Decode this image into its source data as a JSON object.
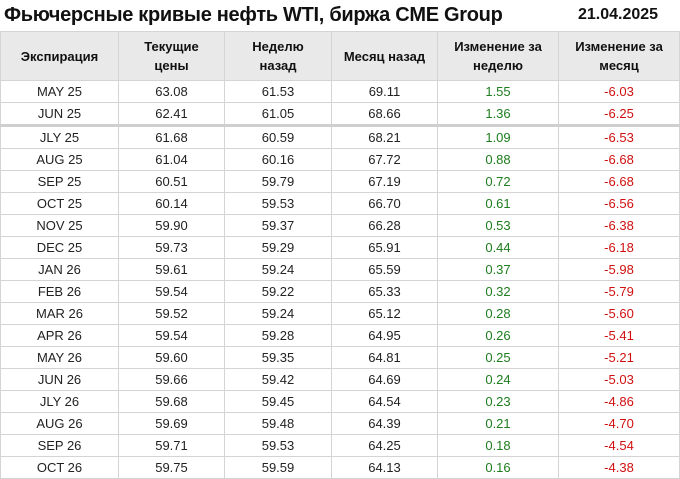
{
  "header": {
    "title": "Фьючерсные кривые нефть WTI, биржа CME Group",
    "date": "21.04.2025"
  },
  "colors": {
    "positive": "#1e7d1e",
    "negative": "#d01010",
    "header_bg": "#e9e9e9"
  },
  "table": {
    "columns": [
      "Экспирация",
      "Текущие цены",
      "Неделю назад",
      "Месяц назад",
      "Изменение за неделю",
      "Изменение за месяц"
    ],
    "rows": [
      [
        "MAY 25",
        "63.08",
        "61.53",
        "69.11",
        "1.55",
        "-6.03"
      ],
      [
        "JUN 25",
        "62.41",
        "61.05",
        "68.66",
        "1.36",
        "-6.25"
      ],
      [
        "JLY 25",
        "61.68",
        "60.59",
        "68.21",
        "1.09",
        "-6.53"
      ],
      [
        "AUG 25",
        "61.04",
        "60.16",
        "67.72",
        "0.88",
        "-6.68"
      ],
      [
        "SEP 25",
        "60.51",
        "59.79",
        "67.19",
        "0.72",
        "-6.68"
      ],
      [
        "OCT 25",
        "60.14",
        "59.53",
        "66.70",
        "0.61",
        "-6.56"
      ],
      [
        "NOV 25",
        "59.90",
        "59.37",
        "66.28",
        "0.53",
        "-6.38"
      ],
      [
        "DEC 25",
        "59.73",
        "59.29",
        "65.91",
        "0.44",
        "-6.18"
      ],
      [
        "JAN 26",
        "59.61",
        "59.24",
        "65.59",
        "0.37",
        "-5.98"
      ],
      [
        "FEB 26",
        "59.54",
        "59.22",
        "65.33",
        "0.32",
        "-5.79"
      ],
      [
        "MAR 26",
        "59.52",
        "59.24",
        "65.12",
        "0.28",
        "-5.60"
      ],
      [
        "APR 26",
        "59.54",
        "59.28",
        "64.95",
        "0.26",
        "-5.41"
      ],
      [
        "MAY 26",
        "59.60",
        "59.35",
        "64.81",
        "0.25",
        "-5.21"
      ],
      [
        "JUN 26",
        "59.66",
        "59.42",
        "64.69",
        "0.24",
        "-5.03"
      ],
      [
        "JLY 26",
        "59.68",
        "59.45",
        "64.54",
        "0.23",
        "-4.86"
      ],
      [
        "AUG 26",
        "59.69",
        "59.48",
        "64.39",
        "0.21",
        "-4.70"
      ],
      [
        "SEP 26",
        "59.71",
        "59.53",
        "64.25",
        "0.18",
        "-4.54"
      ],
      [
        "OCT 26",
        "59.75",
        "59.59",
        "64.13",
        "0.16",
        "-4.38"
      ]
    ]
  }
}
